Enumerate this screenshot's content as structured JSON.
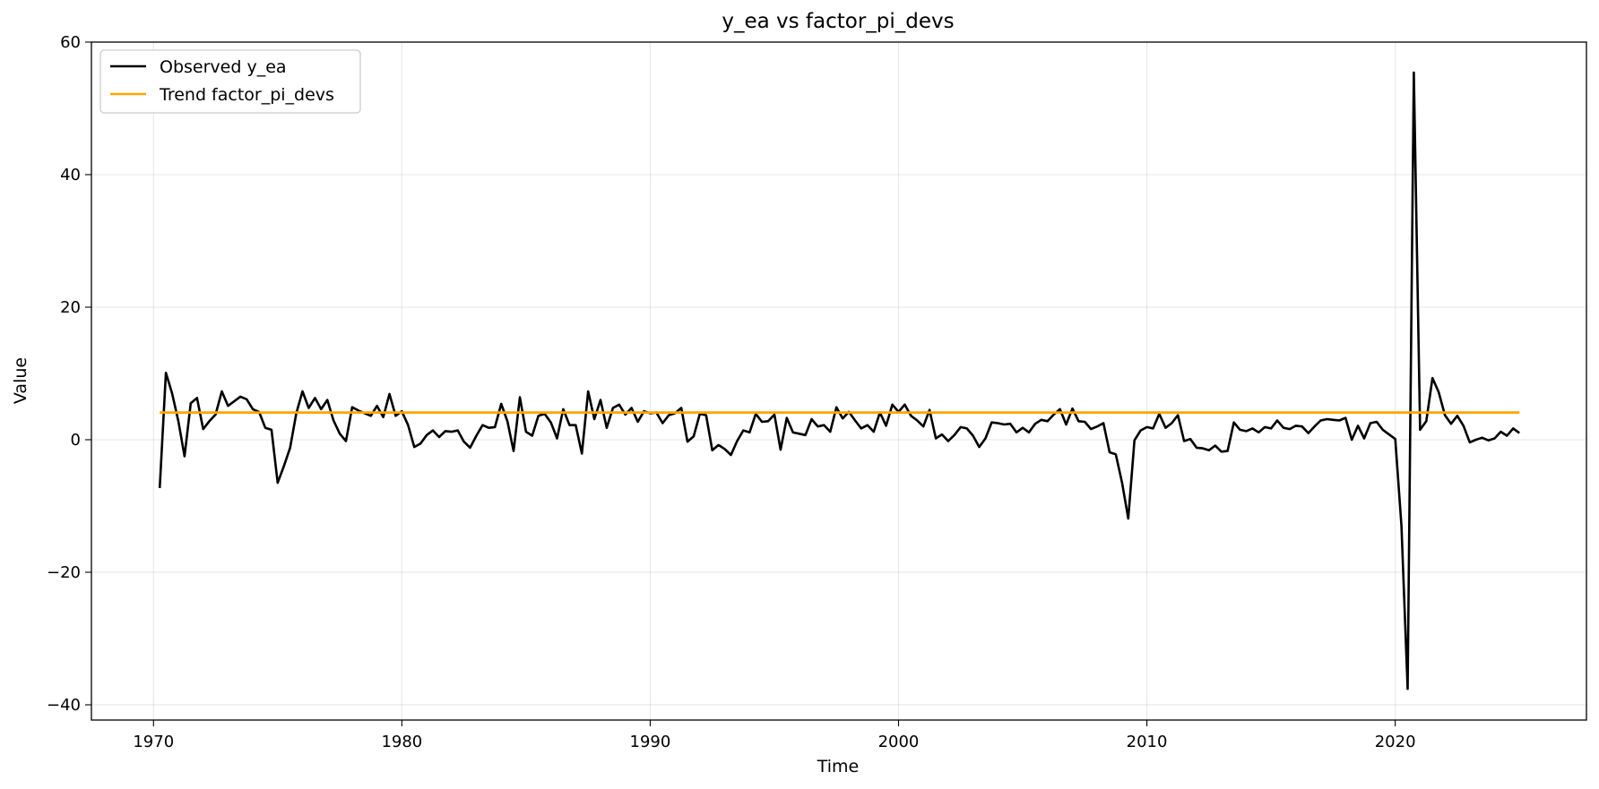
{
  "chart_data": {
    "type": "line",
    "title": "y_ea vs factor_pi_devs",
    "xlabel": "Time",
    "ylabel": "Value",
    "xlim": [
      1967.5,
      2027.7
    ],
    "ylim": [
      -42.3,
      60
    ],
    "xticks": [
      1970,
      1980,
      1990,
      2000,
      2010,
      2020
    ],
    "yticks": [
      -40,
      -20,
      0,
      20,
      40,
      60
    ],
    "ytick_labels": [
      "−40",
      "−20",
      "0",
      "20",
      "40",
      "60"
    ],
    "grid": true,
    "legend": {
      "placement": "top-left",
      "entries": [
        "Observed y_ea",
        "Trend factor_pi_devs"
      ]
    },
    "series": [
      {
        "name": "Observed y_ea",
        "color": "#000000",
        "x_start": 1970.25,
        "x_step": 0.25,
        "values": [
          -7.3,
          10.1,
          7.0,
          2.8,
          -2.5,
          5.5,
          6.3,
          1.6,
          2.8,
          3.8,
          7.3,
          5.1,
          5.8,
          6.5,
          6.1,
          4.6,
          4.2,
          1.8,
          1.5,
          -6.5,
          -4.0,
          -1.2,
          4.0,
          7.3,
          4.8,
          6.3,
          4.6,
          6.0,
          2.9,
          0.9,
          -0.2,
          4.9,
          4.4,
          4.0,
          3.6,
          5.1,
          3.4,
          6.9,
          3.6,
          4.3,
          2.2,
          -1.1,
          -0.6,
          0.7,
          1.4,
          0.4,
          1.3,
          1.2,
          1.4,
          -0.3,
          -1.2,
          0.6,
          2.2,
          1.8,
          1.9,
          5.4,
          2.8,
          -1.7,
          6.4,
          1.2,
          0.6,
          3.6,
          3.9,
          2.6,
          0.2,
          4.6,
          2.2,
          2.2,
          -2.1,
          7.3,
          3.1,
          6.0,
          1.8,
          4.8,
          5.3,
          3.8,
          4.8,
          2.7,
          4.3,
          4.0,
          4.1,
          2.5,
          3.7,
          4.0,
          4.8,
          -0.3,
          0.5,
          3.9,
          3.7,
          -1.6,
          -0.8,
          -1.4,
          -2.3,
          -0.2,
          1.4,
          1.1,
          3.9,
          2.7,
          2.8,
          3.8,
          -1.5,
          3.3,
          1.1,
          0.9,
          0.7,
          3.1,
          2.0,
          2.2,
          1.2,
          4.9,
          3.2,
          4.2,
          2.9,
          1.7,
          2.2,
          1.2,
          4.1,
          2.1,
          5.3,
          4.2,
          5.3,
          3.6,
          2.9,
          2.0,
          4.5,
          0.2,
          0.8,
          -0.2,
          0.7,
          1.9,
          1.7,
          0.6,
          -1.1,
          0.2,
          2.6,
          2.5,
          2.3,
          2.4,
          1.1,
          1.8,
          1.1,
          2.4,
          3.0,
          2.8,
          3.8,
          4.6,
          2.3,
          4.7,
          2.8,
          2.7,
          1.6,
          2.0,
          2.5,
          -1.9,
          -2.2,
          -6.5,
          -11.9,
          -0.1,
          1.4,
          1.9,
          1.7,
          3.9,
          1.8,
          2.5,
          3.7,
          -0.2,
          0.1,
          -1.2,
          -1.3,
          -1.6,
          -0.9,
          -1.8,
          -1.7,
          2.6,
          1.5,
          1.3,
          1.7,
          1.1,
          1.9,
          1.7,
          2.9,
          1.8,
          1.6,
          2.1,
          2.0,
          1.0,
          2.0,
          2.9,
          3.1,
          3.0,
          2.9,
          3.3,
          0.0,
          2.1,
          0.2,
          2.5,
          2.7,
          1.5,
          0.8,
          0.1,
          -13.0,
          -37.6,
          55.4,
          1.5,
          2.8,
          9.3,
          7.2,
          3.7,
          2.4,
          3.6,
          2.1,
          -0.4,
          0.0,
          0.3,
          -0.1,
          0.2,
          1.2,
          0.6,
          1.7,
          1.0
        ]
      },
      {
        "name": "Trend factor_pi_devs",
        "color": "#ffa500",
        "x": [
          1970.25,
          2025.0
        ],
        "values": [
          4.1,
          4.1
        ]
      }
    ]
  }
}
